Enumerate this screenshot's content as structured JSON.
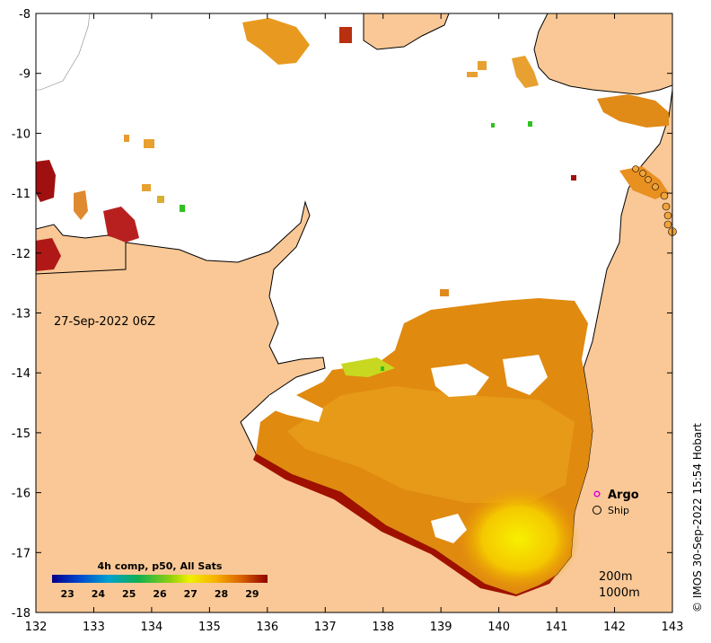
{
  "map": {
    "timestamp_label": "27-Sep-2022 06Z",
    "x_ticks": [
      "132",
      "133",
      "134",
      "135",
      "136",
      "137",
      "138",
      "139",
      "140",
      "141",
      "142",
      "143"
    ],
    "y_ticks": [
      "-8",
      "-9",
      "-10",
      "-11",
      "-12",
      "-13",
      "-14",
      "-15",
      "-16",
      "-17",
      "-18"
    ],
    "colors": {
      "land": "#f9c896",
      "no_data": "#ffffff",
      "coast": "#000000"
    }
  },
  "colorbar": {
    "title": "4h comp, p50, All Sats",
    "tick_labels": [
      "23",
      "24",
      "25",
      "26",
      "27",
      "28",
      "29"
    ],
    "range": [
      22.5,
      29.5
    ]
  },
  "legend": {
    "argo_label": "Argo",
    "ship_label": "Ship",
    "argo_color": "#e000e0",
    "ship_color": "#f2a33a"
  },
  "contours": {
    "label_200": "200m",
    "label_1000": "1000m"
  },
  "credit": "© IMOS 30-Sep-2022 15:54 Hobart"
}
